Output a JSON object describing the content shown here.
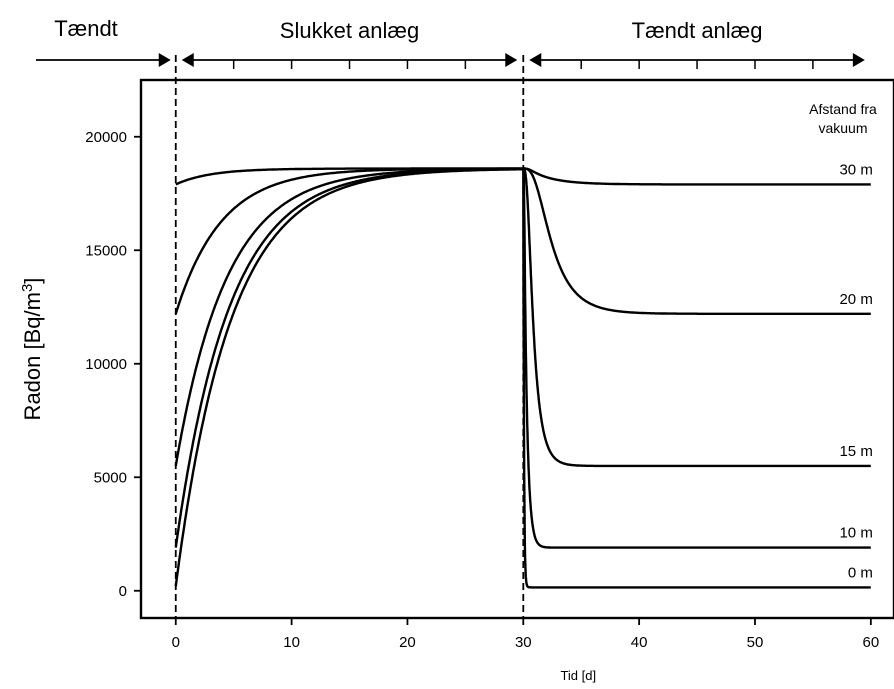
{
  "chart_data": {
    "type": "line",
    "title": "",
    "xlabel": "Tid [d]",
    "ylabel_main": "Radon [Bq/m",
    "ylabel_sup": "3",
    "ylabel_close": "]",
    "xlim": [
      -3,
      62
    ],
    "ylim": [
      -1200,
      22500
    ],
    "xticks": [
      0,
      10,
      20,
      30,
      40,
      50,
      60
    ],
    "yticks": [
      0,
      5000,
      10000,
      15000,
      20000
    ],
    "grid": false,
    "phase_markers": [
      0,
      30
    ],
    "phases": [
      {
        "label": "Tændt",
        "from": -3,
        "to": 0
      },
      {
        "label": "Slukket anlæg",
        "from": 0,
        "to": 30
      },
      {
        "label": "Tændt anlæg",
        "from": 30,
        "to": 60
      }
    ],
    "legend_title": [
      "Afstand fra",
      "vakuum"
    ],
    "off_level": 18600,
    "series": [
      {
        "name": "30 m",
        "start": 17900,
        "tau_off": 3.0,
        "end": 17900,
        "tau_on": 2.2,
        "delay_on": 0.8
      },
      {
        "name": "20 m",
        "start": 12200,
        "tau_off": 3.9,
        "end": 12200,
        "tau_on": 1.9,
        "delay_on": 2.2
      },
      {
        "name": "15 m",
        "start": 5500,
        "tau_off": 4.4,
        "end": 5500,
        "tau_on": 0.7,
        "delay_on": 0.7
      },
      {
        "name": "10 m",
        "start": 1900,
        "tau_off": 4.6,
        "end": 1900,
        "tau_on": 0.28,
        "delay_on": 0.1
      },
      {
        "name": "0 m",
        "start": 200,
        "tau_off": 4.7,
        "end": 150,
        "tau_on": 0.06,
        "delay_on": 0.0
      }
    ]
  }
}
